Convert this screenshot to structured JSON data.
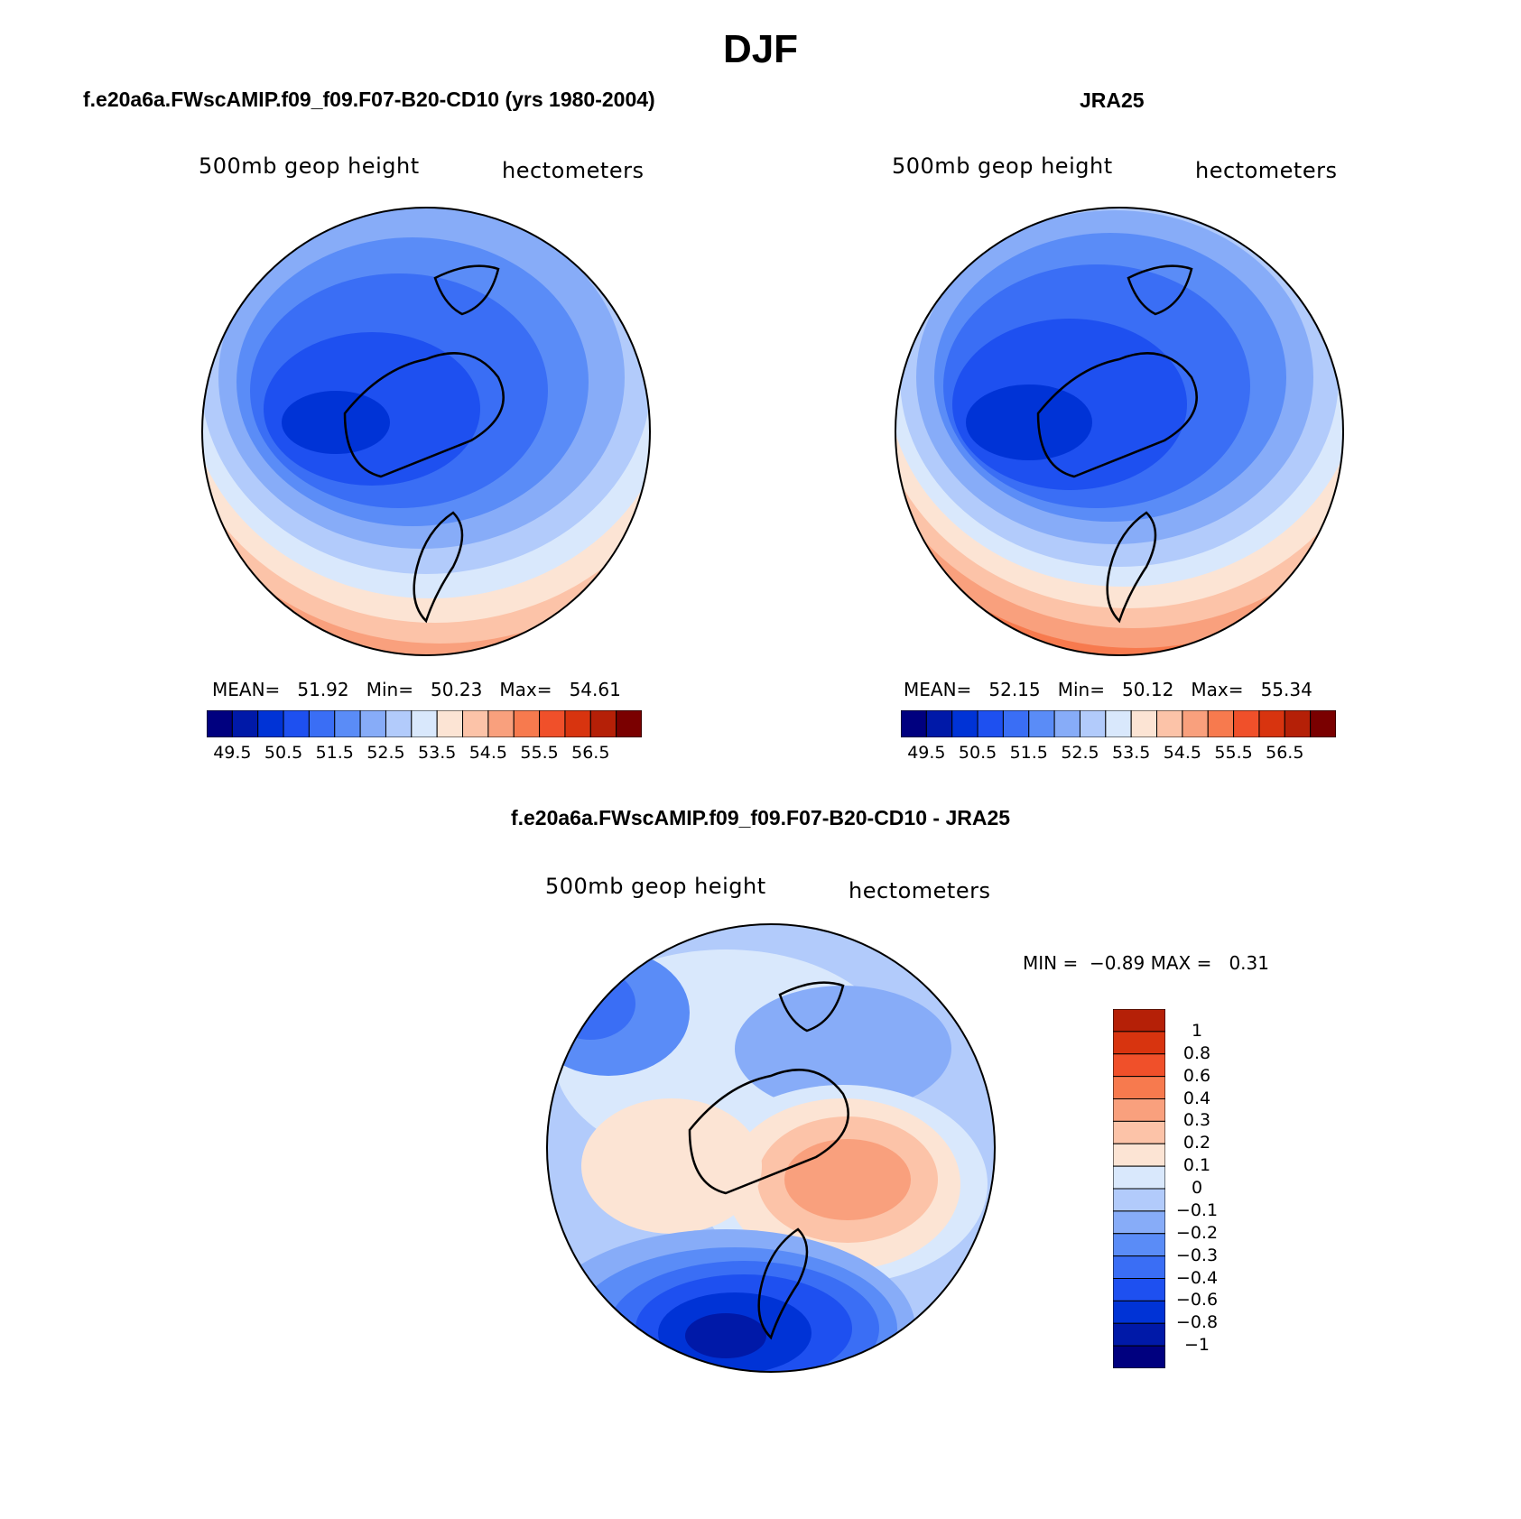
{
  "main_title": "DJF",
  "palette": {
    "levels": [
      "#00007f",
      "#0019a8",
      "#0033d6",
      "#1e50f0",
      "#3a6ef5",
      "#5a8cf7",
      "#87acf8",
      "#b2cbfb",
      "#d9e8fc",
      "#fce4d4",
      "#fcc3a8",
      "#f9a07d",
      "#f77a4e",
      "#f0502a",
      "#d8340f",
      "#b52007",
      "#7a0000"
    ]
  },
  "panels": [
    {
      "title": "f.e20a6a.FWscAMIP.f09_f09.F07-B20-CD10 (yrs 1980-2004)",
      "variable": "500mb geop height",
      "units": "hectometers",
      "stats": {
        "mean_label": "MEAN=",
        "mean": "51.92",
        "min_label": "Min=",
        "min": "50.23",
        "max_label": "Max=",
        "max": "54.61"
      }
    },
    {
      "title": "JRA25",
      "variable": "500mb geop height",
      "units": "hectometers",
      "stats": {
        "mean_label": "MEAN=",
        "mean": "52.15",
        "min_label": "Min=",
        "min": "50.12",
        "max_label": "Max=",
        "max": "55.34"
      }
    },
    {
      "title": "f.e20a6a.FWscAMIP.f09_f09.F07-B20-CD10 - JRA25",
      "variable": "500mb geop height",
      "units": "hectometers",
      "stats": {
        "min_label": "MIN =",
        "min": "−0.89",
        "max_label": "MAX =",
        "max": "0.31"
      }
    }
  ],
  "chart_data": [
    {
      "type": "heatmap",
      "title": "f.e20a6a.FWscAMIP.f09_f09.F07-B20-CD10 (yrs 1980-2004)",
      "field": "500mb geop height",
      "units": "hectometers",
      "projection": "north polar stereographic",
      "colorbar": {
        "colors": [
          "#00007f",
          "#0019a8",
          "#0033d6",
          "#1e50f0",
          "#3a6ef5",
          "#5a8cf7",
          "#87acf8",
          "#b2cbfb",
          "#d9e8fc",
          "#fce4d4",
          "#fcc3a8",
          "#f9a07d",
          "#f77a4e",
          "#f0502a",
          "#d8340f",
          "#b52007",
          "#7a0000"
        ],
        "tick_labels": [
          "49.5",
          "50.5",
          "51.5",
          "52.5",
          "53.5",
          "54.5",
          "55.5",
          "56.5"
        ]
      },
      "mean": 51.92,
      "min": 50.23,
      "max": 54.61
    },
    {
      "type": "heatmap",
      "title": "JRA25",
      "field": "500mb geop height",
      "units": "hectometers",
      "projection": "north polar stereographic",
      "colorbar": {
        "colors": [
          "#00007f",
          "#0019a8",
          "#0033d6",
          "#1e50f0",
          "#3a6ef5",
          "#5a8cf7",
          "#87acf8",
          "#b2cbfb",
          "#d9e8fc",
          "#fce4d4",
          "#fcc3a8",
          "#f9a07d",
          "#f77a4e",
          "#f0502a",
          "#d8340f",
          "#b52007",
          "#7a0000"
        ],
        "tick_labels": [
          "49.5",
          "50.5",
          "51.5",
          "52.5",
          "53.5",
          "54.5",
          "55.5",
          "56.5"
        ]
      },
      "mean": 52.15,
      "min": 50.12,
      "max": 55.34
    },
    {
      "type": "heatmap",
      "title": "f.e20a6a.FWscAMIP.f09_f09.F07-B20-CD10 - JRA25",
      "field": "500mb geop height",
      "units": "hectometers",
      "projection": "north polar stereographic",
      "colorbar": {
        "colors": [
          "#00007f",
          "#0019a8",
          "#0033d6",
          "#1e50f0",
          "#3a6ef5",
          "#5a8cf7",
          "#87acf8",
          "#b2cbfb",
          "#d9e8fc",
          "#fce4d4",
          "#fcc3a8",
          "#f9a07d",
          "#f77a4e",
          "#f0502a",
          "#d8340f",
          "#b52007"
        ],
        "tick_labels": [
          "1",
          "0.8",
          "0.6",
          "0.4",
          "0.3",
          "0.2",
          "0.1",
          "0",
          "−0.1",
          "−0.2",
          "−0.3",
          "−0.4",
          "−0.6",
          "−0.8",
          "−1"
        ]
      },
      "min": -0.89,
      "max": 0.31
    }
  ]
}
